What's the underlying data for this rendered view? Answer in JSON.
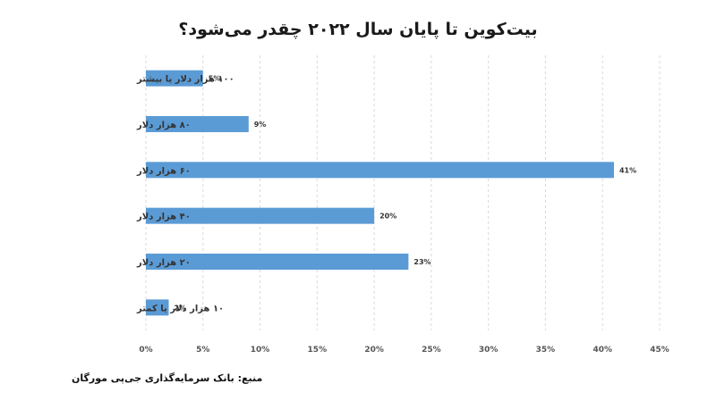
{
  "chart_data": {
    "type": "bar",
    "orientation": "horizontal",
    "title": "بیت‌کوین تا پایان سال ۲۰۲۲ چقدر می‌شود؟",
    "categories": [
      "۱۰۰ هزار دلار یا بیشتر",
      "۸۰ هزار دلار",
      "۶۰ هزار دلار",
      "۴۰ هزار دلار",
      "۲۰ هزار دلار",
      "۱۰ هزار دلار یا کمتر"
    ],
    "values": [
      5,
      9,
      41,
      20,
      23,
      2
    ],
    "value_labels": [
      "5%",
      "9%",
      "41%",
      "20%",
      "23%",
      "2%"
    ],
    "xlim": [
      0,
      45
    ],
    "x_ticks": [
      0,
      5,
      10,
      15,
      20,
      25,
      30,
      35,
      40,
      45
    ],
    "x_tick_labels": [
      "0%",
      "5%",
      "10%",
      "15%",
      "20%",
      "25%",
      "30%",
      "35%",
      "40%",
      "45%"
    ],
    "grid": "vertical dashed",
    "bar_color": "#5b9bd5",
    "source": "منبع: بانک سرمایه‌گذاری جی‌پی مورگان"
  }
}
